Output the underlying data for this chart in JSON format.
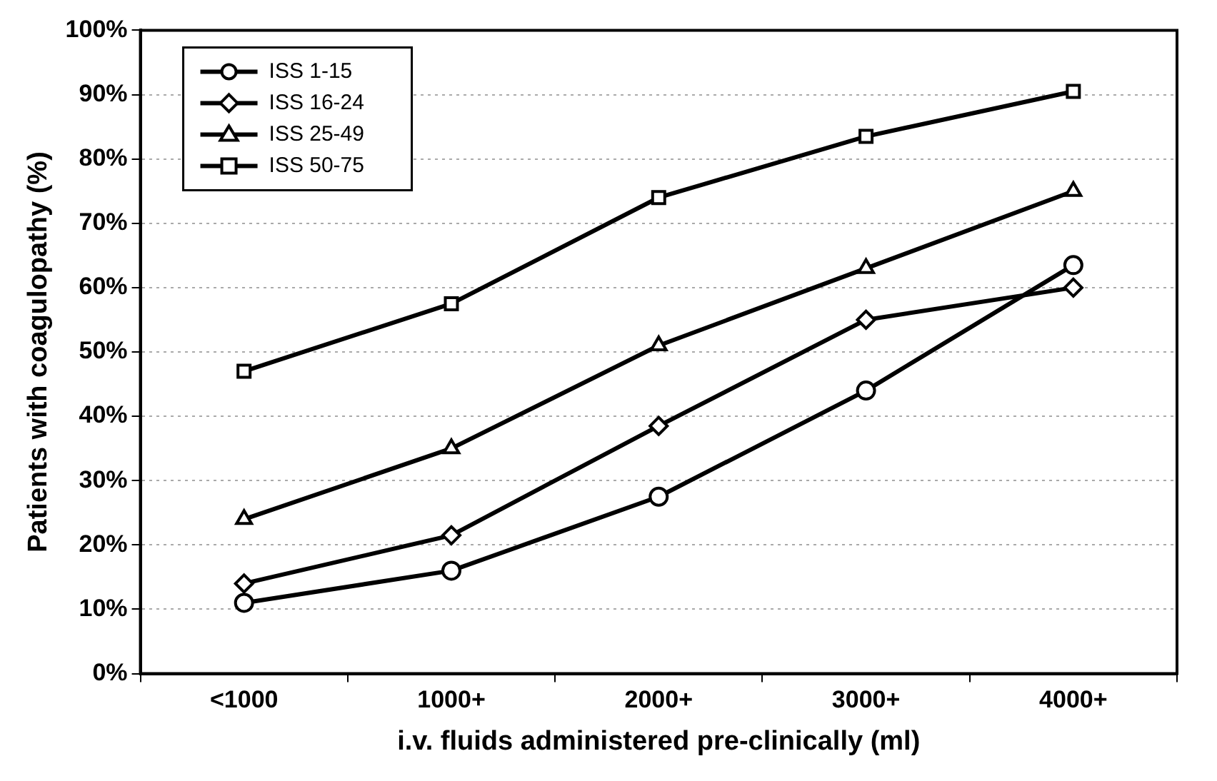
{
  "chart_data": {
    "type": "line",
    "xlabel": "i.v. fluids administered pre-clinically (ml)",
    "ylabel": "Patients with coagulopathy (%)",
    "categories": [
      "<1000",
      "1000+",
      "2000+",
      "3000+",
      "4000+"
    ],
    "series": [
      {
        "name": "ISS 1-15",
        "color": "#000000",
        "marker": "circle",
        "values": [
          11,
          16,
          27.5,
          44,
          63.5
        ]
      },
      {
        "name": "ISS 16-24",
        "color": "#000000",
        "marker": "diamond",
        "values": [
          14,
          21.5,
          38.5,
          55,
          60
        ]
      },
      {
        "name": "ISS 25-49",
        "color": "#000000",
        "marker": "triangle",
        "values": [
          24,
          35,
          51,
          63,
          75
        ]
      },
      {
        "name": "ISS 50-75",
        "color": "#000000",
        "marker": "square",
        "values": [
          47,
          57.5,
          74,
          83.5,
          90.5
        ]
      }
    ],
    "ylim": [
      0,
      100
    ],
    "yticks": [
      {
        "value": 0,
        "label": "0%"
      },
      {
        "value": 10,
        "label": "10%"
      },
      {
        "value": 20,
        "label": "20%"
      },
      {
        "value": 30,
        "label": "30%"
      },
      {
        "value": 40,
        "label": "40%"
      },
      {
        "value": 50,
        "label": "50%"
      },
      {
        "value": 60,
        "label": "60%"
      },
      {
        "value": 70,
        "label": "70%"
      },
      {
        "value": 80,
        "label": "80%"
      },
      {
        "value": 90,
        "label": "90%"
      },
      {
        "value": 100,
        "label": "100%"
      }
    ],
    "grid": "y",
    "legend": "top left",
    "line_style": "solid"
  }
}
